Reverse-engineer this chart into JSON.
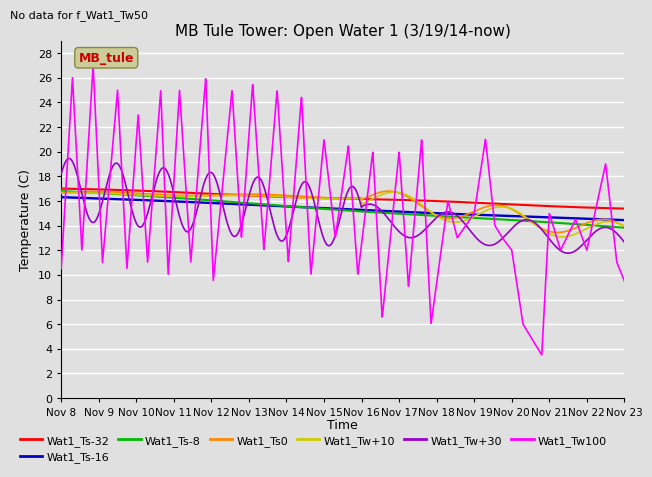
{
  "title": "MB Tule Tower: Open Water 1 (3/19/14-now)",
  "subtitle": "No data for f_Wat1_Tw50",
  "xlabel": "Time",
  "ylabel": "Temperature (C)",
  "ylim": [
    0,
    29
  ],
  "yticks": [
    0,
    2,
    4,
    6,
    8,
    10,
    12,
    14,
    16,
    18,
    20,
    22,
    24,
    26,
    28
  ],
  "xtick_labels": [
    "Nov 8",
    "Nov 9",
    "Nov 10",
    "Nov 11",
    "Nov 12",
    "Nov 13",
    "Nov 14",
    "Nov 15",
    "Nov 16",
    "Nov 17",
    "Nov 18",
    "Nov 19",
    "Nov 20",
    "Nov 21",
    "Nov 22",
    "Nov 23"
  ],
  "background_color": "#e0e0e0",
  "plot_bg_color": "#e0e0e0",
  "grid_color": "#ffffff",
  "series_colors": {
    "Wat1_Ts-32": "#ff0000",
    "Wat1_Ts-16": "#0000cc",
    "Wat1_Ts-8": "#00bb00",
    "Wat1_Ts0": "#ff8800",
    "Wat1_Tw+10": "#cccc00",
    "Wat1_Tw+30": "#9900cc",
    "Wat1_Tw100": "#ff00ff"
  },
  "legend_box_color": "#cccc99",
  "legend_text": "MB_tule",
  "legend_text_color": "#cc0000"
}
